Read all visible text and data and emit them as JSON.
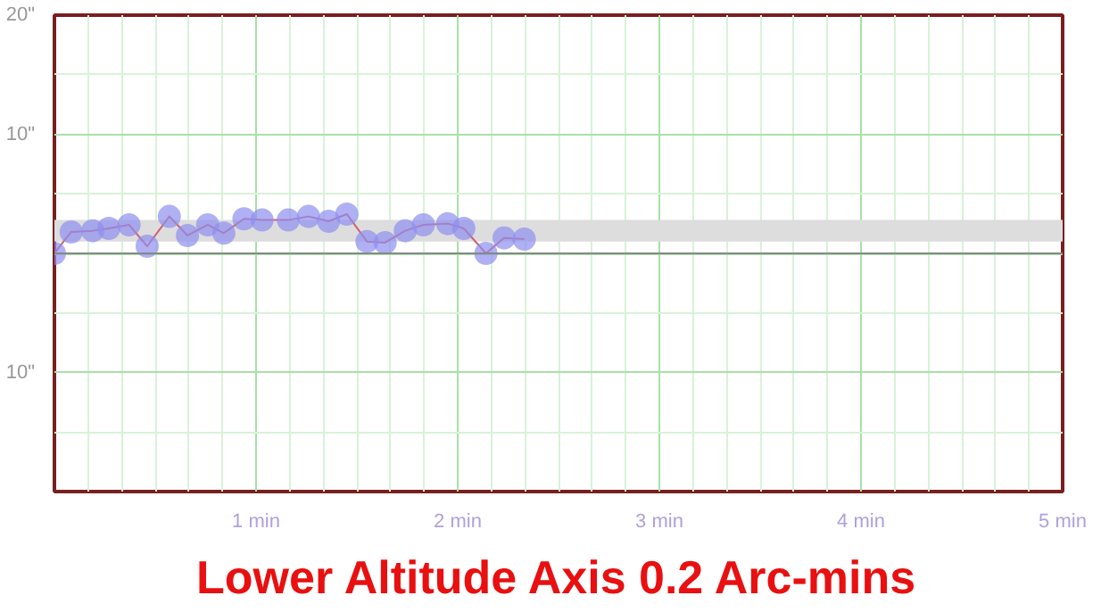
{
  "chart_data": {
    "type": "line",
    "title": "Lower Altitude Axis 0.2 Arc-mins",
    "x": [
      0,
      0.083,
      0.19,
      0.27,
      0.37,
      0.46,
      0.57,
      0.66,
      0.76,
      0.84,
      0.94,
      1.03,
      1.16,
      1.26,
      1.36,
      1.45,
      1.55,
      1.64,
      1.74,
      1.83,
      1.95,
      2.03,
      2.14,
      2.23,
      2.33
    ],
    "series": [
      {
        "color": "#8f8ff0",
        "values": [
          0,
          1.8,
          1.9,
          2.1,
          2.4,
          0.6,
          3.1,
          1.5,
          2.4,
          1.7,
          2.9,
          2.8,
          2.8,
          3.1,
          2.7,
          3.3,
          1.0,
          0.9,
          1.9,
          2.4,
          2.5,
          2.1,
          0.0,
          1.3,
          1.2
        ]
      }
    ],
    "marker": "circle",
    "line_style": "solid",
    "xlim": [
      0,
      5
    ],
    "ylim": [
      -20,
      20
    ],
    "xticks": [
      {
        "value": 0,
        "label": null
      },
      {
        "value": 1,
        "label": "1 min"
      },
      {
        "value": 2,
        "label": "2 min"
      },
      {
        "value": 3,
        "label": "3 min"
      },
      {
        "value": 4,
        "label": "4 min"
      },
      {
        "value": 5,
        "label": "5 min"
      }
    ],
    "yticks": [
      {
        "value": -20,
        "label": null
      },
      {
        "value": -10,
        "label": "10\""
      },
      {
        "value": 0,
        "label": null
      },
      {
        "value": 10,
        "label": "10\""
      },
      {
        "value": 20,
        "label": "20\""
      }
    ],
    "bands": [
      {
        "axis": "y",
        "from": 1.0,
        "to": 2.8,
        "color": "#dddddd"
      }
    ],
    "ref_lines": [
      {
        "axis": "y",
        "value": 0,
        "color": "#888888"
      }
    ],
    "grid": true
  }
}
